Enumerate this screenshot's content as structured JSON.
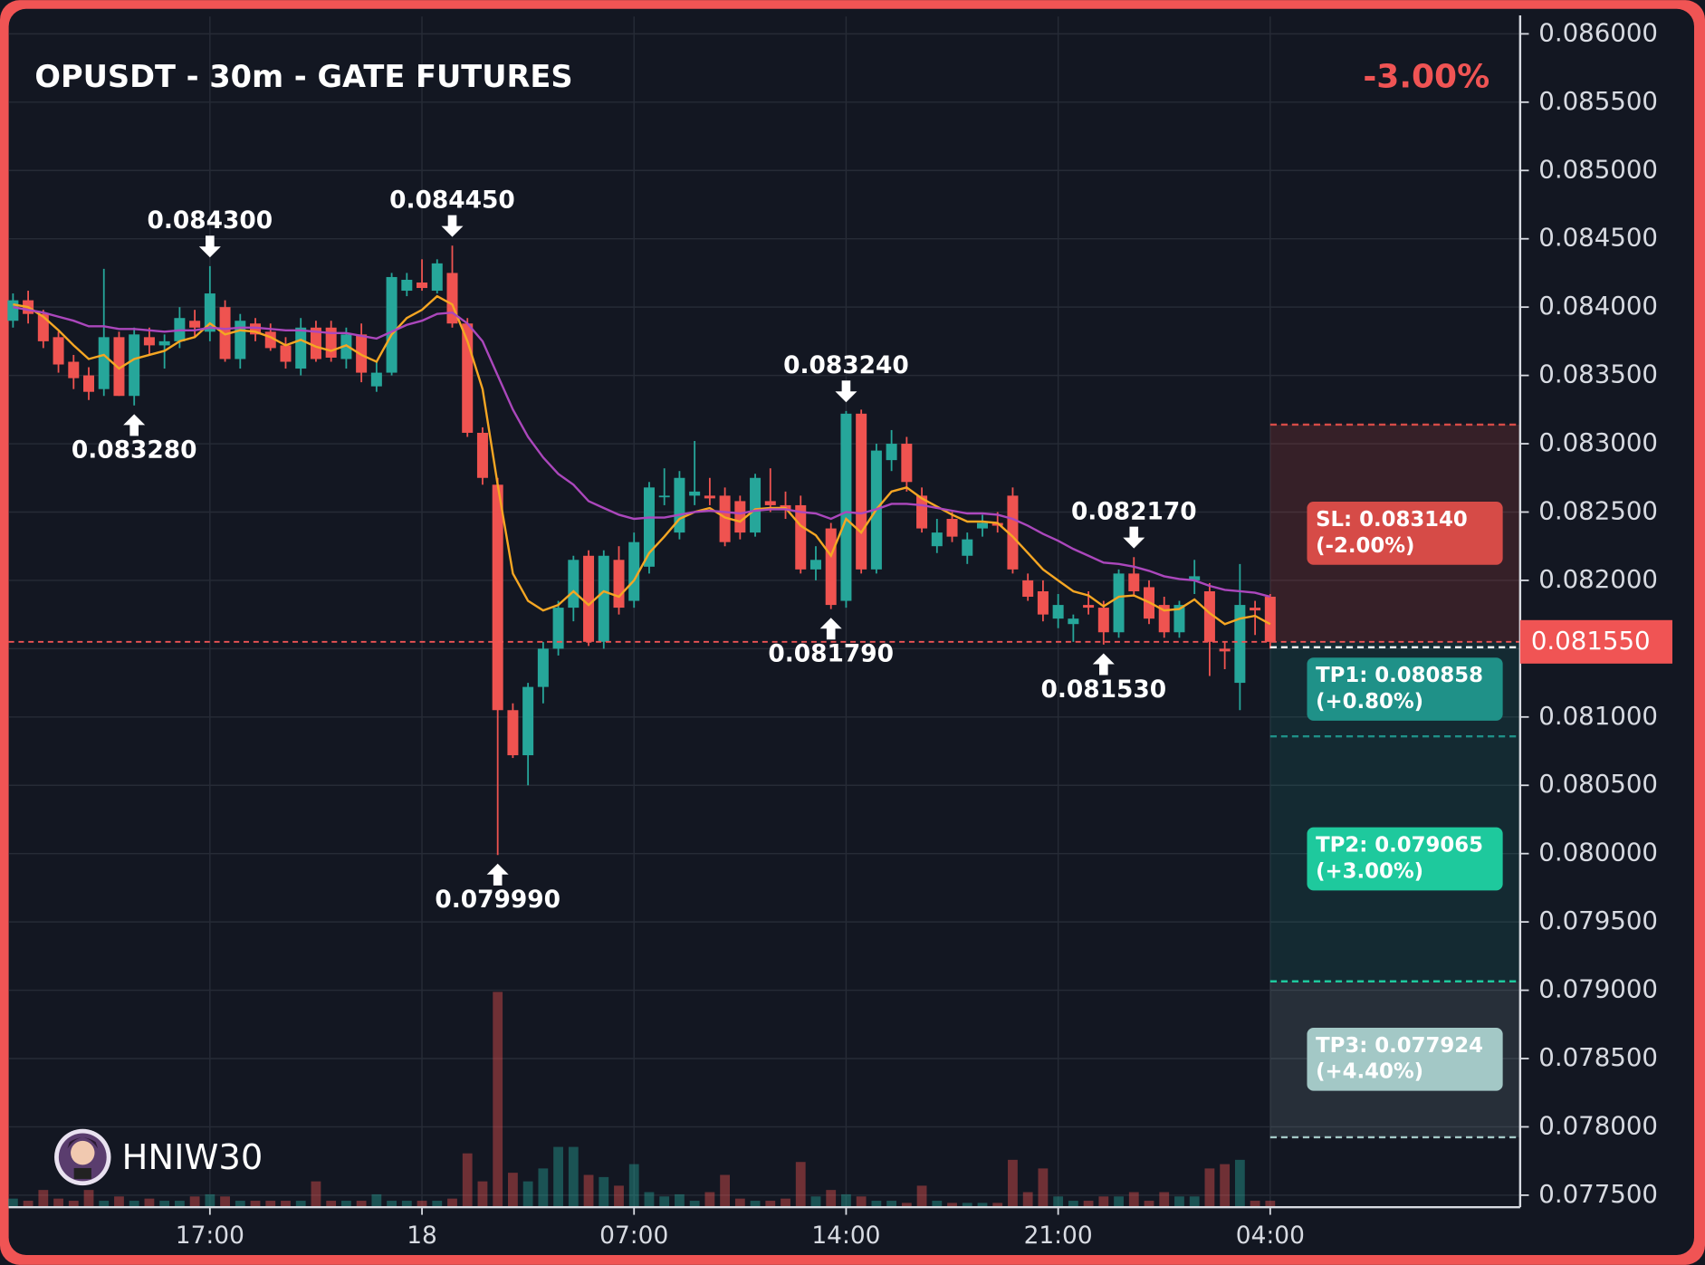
{
  "chart_data": {
    "type": "candlestick",
    "title": "OPUSDT - 30m - GATE FUTURES",
    "change": "-3.00%",
    "watermark": "HNIW30",
    "categories": [
      null,
      null,
      null,
      null,
      null,
      null,
      null,
      null,
      null,
      null,
      null,
      null,
      null,
      "17:00",
      null,
      null,
      null,
      null,
      null,
      null,
      null,
      null,
      null,
      null,
      null,
      null,
      null,
      "18",
      null,
      null,
      null,
      null,
      null,
      null,
      null,
      null,
      null,
      null,
      null,
      null,
      null,
      "07:00",
      null,
      null,
      null,
      null,
      null,
      null,
      null,
      null,
      null,
      null,
      null,
      null,
      null,
      "14:00",
      null,
      null,
      null,
      null,
      null,
      null,
      null,
      null,
      null,
      null,
      null,
      null,
      null,
      "21:00",
      null,
      null,
      null,
      null,
      null,
      null,
      null,
      null,
      null,
      null,
      null,
      null,
      null,
      "04:00"
    ],
    "candles": {
      "up_color": "#26a69a",
      "down_color": "#ef5350",
      "open": [
        0.0839,
        0.08405,
        0.08395,
        0.08378,
        0.0836,
        0.0835,
        0.0834,
        0.08378,
        0.08335,
        0.08378,
        0.08372,
        0.08375,
        0.0839,
        0.08382,
        0.084,
        0.08362,
        0.08388,
        0.08382,
        0.08372,
        0.08355,
        0.08385,
        0.08385,
        0.08362,
        0.0838,
        0.08342,
        0.08352,
        0.08412,
        0.08418,
        0.08412,
        0.08425,
        0.08388,
        0.08308,
        0.0827,
        0.08105,
        0.08072,
        0.08122,
        0.0815,
        0.0818,
        0.08218,
        0.08155,
        0.08215,
        0.08185,
        0.0821,
        0.08262,
        0.08235,
        0.08262,
        0.08262,
        0.08262,
        0.08258,
        0.08235,
        0.08258,
        0.08255,
        0.08255,
        0.08208,
        0.08238,
        0.08185,
        0.08322,
        0.08208,
        0.08288,
        0.083,
        0.08262,
        0.08225,
        0.08245,
        0.08218,
        0.08238,
        0.08242,
        0.08262,
        0.082,
        0.08192,
        0.08172,
        0.08168,
        0.08182,
        0.0818,
        0.08162,
        0.08205,
        0.08195,
        0.08182,
        0.08162,
        0.082,
        0.08192,
        0.0815,
        0.08125,
        0.0818,
        0.08188
      ],
      "high": [
        0.0841,
        0.08412,
        0.08398,
        0.08382,
        0.08365,
        0.08356,
        0.08428,
        0.08382,
        0.08385,
        0.08385,
        0.0838,
        0.084,
        0.08398,
        0.0843,
        0.08405,
        0.08395,
        0.08392,
        0.08388,
        0.08378,
        0.08392,
        0.0839,
        0.0839,
        0.08385,
        0.08388,
        0.0836,
        0.08425,
        0.08425,
        0.08435,
        0.08435,
        0.08445,
        0.08392,
        0.08312,
        0.08275,
        0.0811,
        0.08125,
        0.08155,
        0.08185,
        0.08218,
        0.08222,
        0.08222,
        0.08225,
        0.08235,
        0.08272,
        0.08282,
        0.0828,
        0.08302,
        0.08275,
        0.08268,
        0.08262,
        0.08278,
        0.08282,
        0.08265,
        0.08262,
        0.08225,
        0.08242,
        0.08324,
        0.08325,
        0.083,
        0.0831,
        0.08305,
        0.08268,
        0.08245,
        0.0825,
        0.08235,
        0.08248,
        0.0825,
        0.08268,
        0.08205,
        0.082,
        0.0819,
        0.08175,
        0.08192,
        0.08185,
        0.08208,
        0.08217,
        0.082,
        0.08188,
        0.08185,
        0.08215,
        0.08198,
        0.08155,
        0.08212,
        0.08185,
        0.0819
      ],
      "low": [
        0.08385,
        0.08388,
        0.0837,
        0.08352,
        0.0834,
        0.08332,
        0.08335,
        0.08335,
        0.08328,
        0.08365,
        0.08355,
        0.0837,
        0.08378,
        0.08375,
        0.0836,
        0.08355,
        0.08375,
        0.08368,
        0.08355,
        0.0835,
        0.0836,
        0.0836,
        0.08355,
        0.08345,
        0.08338,
        0.0835,
        0.08408,
        0.08412,
        0.0841,
        0.08385,
        0.08305,
        0.0827,
        0.07999,
        0.0807,
        0.0805,
        0.0811,
        0.08145,
        0.0817,
        0.08152,
        0.0815,
        0.08175,
        0.0818,
        0.08205,
        0.08255,
        0.0823,
        0.08255,
        0.08255,
        0.08225,
        0.0823,
        0.08232,
        0.0825,
        0.08245,
        0.08205,
        0.082,
        0.08179,
        0.0818,
        0.08205,
        0.08205,
        0.0828,
        0.08265,
        0.08235,
        0.0822,
        0.08228,
        0.08212,
        0.08232,
        0.08235,
        0.08205,
        0.08185,
        0.0817,
        0.08165,
        0.08155,
        0.08175,
        0.08153,
        0.08158,
        0.08188,
        0.08168,
        0.08158,
        0.08158,
        0.0819,
        0.0813,
        0.08135,
        0.08105,
        0.0816,
        0.0815
      ],
      "close": [
        0.08405,
        0.08395,
        0.08375,
        0.08358,
        0.08348,
        0.08338,
        0.08378,
        0.08335,
        0.0838,
        0.08372,
        0.08375,
        0.08392,
        0.08385,
        0.0841,
        0.08362,
        0.0839,
        0.0838,
        0.0837,
        0.0836,
        0.08385,
        0.08362,
        0.08363,
        0.0838,
        0.08352,
        0.08352,
        0.08422,
        0.0842,
        0.08414,
        0.08432,
        0.08388,
        0.08308,
        0.08275,
        0.08105,
        0.08072,
        0.08122,
        0.0815,
        0.0818,
        0.08215,
        0.08155,
        0.08218,
        0.0818,
        0.08228,
        0.08268,
        0.08262,
        0.08275,
        0.08265,
        0.0826,
        0.08228,
        0.08235,
        0.08275,
        0.08255,
        0.08252,
        0.08208,
        0.08215,
        0.08182,
        0.08322,
        0.08208,
        0.08295,
        0.083,
        0.08272,
        0.08238,
        0.08235,
        0.08232,
        0.0823,
        0.08242,
        0.0824,
        0.08208,
        0.08188,
        0.08175,
        0.08182,
        0.08172,
        0.0818,
        0.08162,
        0.08205,
        0.08192,
        0.08172,
        0.08162,
        0.08182,
        0.08203,
        0.08155,
        0.08148,
        0.08182,
        0.08178,
        0.08155
      ],
      "volume": [
        4,
        3,
        8,
        4,
        3,
        8,
        3,
        5,
        3,
        4,
        3,
        3,
        5,
        6,
        5,
        3,
        3,
        3,
        3,
        3,
        12,
        3,
        3,
        3,
        6,
        3,
        3,
        3,
        3,
        4,
        25,
        12,
        100,
        16,
        12,
        18,
        28,
        28,
        15,
        14,
        10,
        20,
        7,
        5,
        6,
        3,
        7,
        15,
        4,
        3,
        3,
        4,
        21,
        5,
        8,
        6,
        5,
        3,
        3,
        2,
        10,
        3,
        2,
        2,
        2,
        2,
        22,
        7,
        18,
        5,
        3,
        3,
        5,
        5,
        7,
        3,
        7,
        5,
        5,
        18,
        20,
        22,
        3,
        3
      ]
    },
    "lines": [
      {
        "color": "#f5a623",
        "values": [
          0.08402,
          0.084,
          0.08393,
          0.08383,
          0.08372,
          0.08362,
          0.08365,
          0.08355,
          0.08362,
          0.08365,
          0.08368,
          0.08375,
          0.08378,
          0.08388,
          0.0838,
          0.08383,
          0.08382,
          0.08378,
          0.08372,
          0.08376,
          0.08371,
          0.08368,
          0.08372,
          0.08365,
          0.0836,
          0.0838,
          0.08392,
          0.08398,
          0.08408,
          0.08402,
          0.08375,
          0.0834,
          0.0827,
          0.08205,
          0.08185,
          0.08178,
          0.08182,
          0.08192,
          0.08182,
          0.08192,
          0.08188,
          0.082,
          0.0822,
          0.08232,
          0.08245,
          0.0825,
          0.08253,
          0.08246,
          0.08243,
          0.08252,
          0.08253,
          0.08253,
          0.0824,
          0.08233,
          0.08218,
          0.08245,
          0.08235,
          0.08252,
          0.08265,
          0.08268,
          0.0826,
          0.08254,
          0.08248,
          0.08243,
          0.08243,
          0.08242,
          0.08232,
          0.0822,
          0.08208,
          0.082,
          0.08192,
          0.08189,
          0.08181,
          0.08188,
          0.08189,
          0.08184,
          0.08178,
          0.08179,
          0.08186,
          0.08176,
          0.08168,
          0.08172,
          0.08174,
          0.08168
        ]
      },
      {
        "color": "#ab47bc",
        "values": [
          0.084,
          0.08398,
          0.08396,
          0.08393,
          0.0839,
          0.08386,
          0.08386,
          0.08384,
          0.08384,
          0.08383,
          0.08382,
          0.08383,
          0.08383,
          0.08385,
          0.08384,
          0.08385,
          0.08385,
          0.08384,
          0.08383,
          0.08383,
          0.08382,
          0.08381,
          0.08381,
          0.08379,
          0.08377,
          0.08382,
          0.08387,
          0.0839,
          0.08395,
          0.08396,
          0.08388,
          0.08375,
          0.0835,
          0.08325,
          0.08305,
          0.0829,
          0.08278,
          0.0827,
          0.08258,
          0.08253,
          0.08248,
          0.08245,
          0.08246,
          0.08246,
          0.08248,
          0.0825,
          0.08251,
          0.0825,
          0.08249,
          0.08251,
          0.08252,
          0.08252,
          0.0825,
          0.08249,
          0.08245,
          0.0825,
          0.08249,
          0.08252,
          0.08256,
          0.08256,
          0.08255,
          0.08253,
          0.08251,
          0.08249,
          0.08249,
          0.08248,
          0.08245,
          0.0824,
          0.08234,
          0.08229,
          0.08223,
          0.08218,
          0.08213,
          0.08212,
          0.0821,
          0.08207,
          0.08203,
          0.08201,
          0.082,
          0.08196,
          0.08193,
          0.08192,
          0.08191,
          0.08188
        ]
      }
    ],
    "annotations": [
      {
        "kind": "high",
        "value": 0.0843,
        "label": "0.084300"
      },
      {
        "kind": "high",
        "value": 0.08445,
        "label": "0.084450"
      },
      {
        "kind": "high",
        "value": 0.08324,
        "label": "0.083240"
      },
      {
        "kind": "high",
        "value": 0.08217,
        "label": "0.082170"
      },
      {
        "kind": "low",
        "value": 0.08328,
        "label": "0.083280"
      },
      {
        "kind": "low",
        "value": 0.07999,
        "label": "0.079990"
      },
      {
        "kind": "low",
        "value": 0.08179,
        "label": "0.081790"
      },
      {
        "kind": "low",
        "value": 0.08153,
        "label": "0.081530"
      }
    ],
    "entry": {
      "value": 0.08155,
      "label": "0.081550",
      "color": "#f05454"
    },
    "levels": [
      {
        "value": 0.08314,
        "label": "SL: 0.083140",
        "change": "(-2.00%)",
        "color": "#d64b47"
      },
      {
        "value": 0.080858,
        "label": "TP1: 0.080858",
        "change": "(+0.80%)",
        "color": "#1f9188"
      },
      {
        "value": 0.079065,
        "label": "TP2: 0.079065",
        "change": "(+3.00%)",
        "color": "#1ec99d"
      },
      {
        "value": 0.077924,
        "label": "TP3: 0.077924",
        "change": "(+4.40%)",
        "color": "#a3c8c6"
      }
    ],
    "ylim": [
      0.077412,
      0.086167
    ],
    "yticks": [
      {
        "value": 0.0775,
        "label": "0.077500"
      },
      {
        "value": 0.078,
        "label": "0.078000"
      },
      {
        "value": 0.0785,
        "label": "0.078500"
      },
      {
        "value": 0.079,
        "label": "0.079000"
      },
      {
        "value": 0.0795,
        "label": "0.079500"
      },
      {
        "value": 0.08,
        "label": "0.080000"
      },
      {
        "value": 0.0805,
        "label": "0.080500"
      },
      {
        "value": 0.081,
        "label": "0.081000"
      },
      {
        "value": 0.0815,
        "label": "0.081500"
      },
      {
        "value": 0.082,
        "label": "0.082000"
      },
      {
        "value": 0.0825,
        "label": "0.082500"
      },
      {
        "value": 0.083,
        "label": "0.083000"
      },
      {
        "value": 0.0835,
        "label": "0.083500"
      },
      {
        "value": 0.084,
        "label": "0.084000"
      },
      {
        "value": 0.0845,
        "label": "0.084500"
      },
      {
        "value": 0.085,
        "label": "0.085000"
      },
      {
        "value": 0.0855,
        "label": "0.085500"
      },
      {
        "value": 0.086,
        "label": "0.086000"
      }
    ],
    "grid": true
  }
}
